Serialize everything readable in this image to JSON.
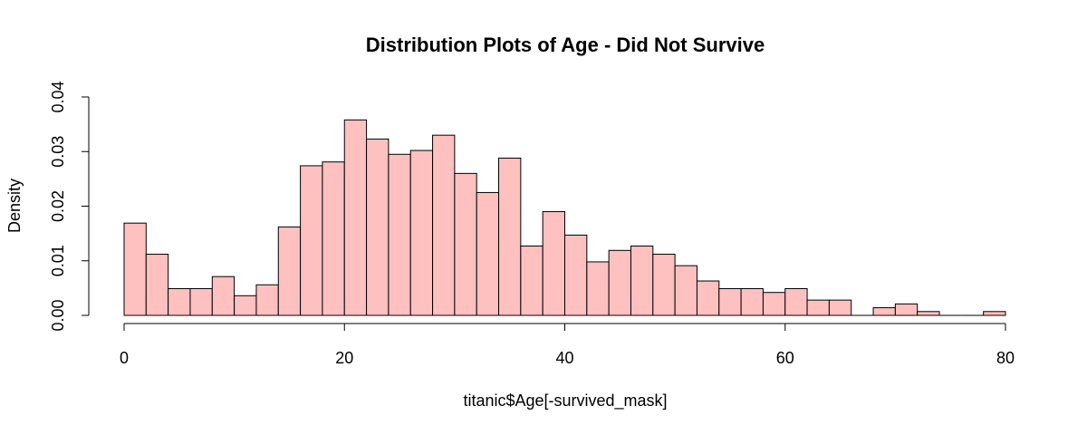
{
  "chart_data": {
    "type": "bar",
    "title": "Distribution Plots of Age - Did Not Survive",
    "xlabel": "titanic$Age[-survived_mask]",
    "ylabel": "Density",
    "bar_color": "#ffc0c0",
    "border_color": "#000000",
    "bin_width": 2,
    "x_start": 0,
    "xlim": [
      0,
      80
    ],
    "ylim": [
      0,
      0.04
    ],
    "x_ticks": [
      0,
      20,
      40,
      60,
      80
    ],
    "x_tick_labels": [
      "0",
      "20",
      "40",
      "60",
      "80"
    ],
    "y_ticks": [
      0,
      0.01,
      0.02,
      0.03,
      0.04
    ],
    "y_tick_labels": [
      "0.00",
      "0.01",
      "0.02",
      "0.03",
      "0.04"
    ],
    "bin_edges": [
      0,
      2,
      4,
      6,
      8,
      10,
      12,
      14,
      16,
      18,
      20,
      22,
      24,
      26,
      28,
      30,
      32,
      34,
      36,
      38,
      40,
      42,
      44,
      46,
      48,
      50,
      52,
      54,
      56,
      58,
      60,
      62,
      64,
      66,
      68,
      70,
      72,
      74,
      76,
      78,
      80
    ],
    "values": [
      0.0169,
      0.0112,
      0.0049,
      0.0049,
      0.0071,
      0.0036,
      0.0056,
      0.0162,
      0.0274,
      0.0281,
      0.0358,
      0.0323,
      0.0295,
      0.0302,
      0.033,
      0.026,
      0.0225,
      0.0288,
      0.0127,
      0.019,
      0.0147,
      0.0098,
      0.0119,
      0.0127,
      0.0112,
      0.0091,
      0.0063,
      0.0049,
      0.0049,
      0.0042,
      0.0049,
      0.0028,
      0.0028,
      0.0,
      0.0014,
      0.0021,
      0.0007,
      0.0,
      0.0,
      0.0007
    ],
    "grid": false
  }
}
